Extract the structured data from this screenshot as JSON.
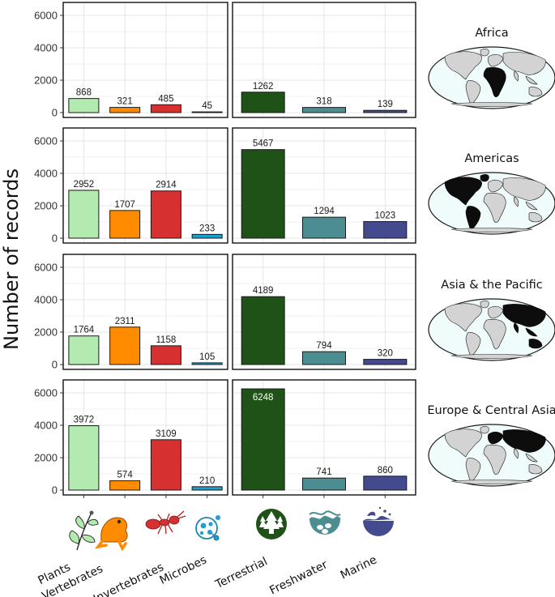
{
  "chart_data": {
    "type": "bar",
    "ylabel": "Number of records",
    "ylim": [
      0,
      6500
    ],
    "yticks": [
      0,
      2000,
      4000,
      6000
    ],
    "grid": true,
    "group_left": {
      "categories": [
        "Plants",
        "Vertebrates",
        "Invertebrates",
        "Microbes"
      ],
      "colors": [
        "#b2eab0",
        "#ff8c00",
        "#d63031",
        "#1f9fcf"
      ]
    },
    "group_right": {
      "categories": [
        "Terrestrial",
        "Freshwater",
        "Marine"
      ],
      "colors": [
        "#1e5216",
        "#4b8d90",
        "#434a8e"
      ]
    },
    "regions": [
      {
        "name": "Africa",
        "left": [
          868,
          321,
          485,
          45
        ],
        "right": [
          1262,
          318,
          139
        ]
      },
      {
        "name": "Americas",
        "left": [
          2952,
          1707,
          2914,
          233
        ],
        "right": [
          5467,
          1294,
          1023
        ]
      },
      {
        "name": "Asia & the Pacific",
        "left": [
          1764,
          2311,
          1158,
          105
        ],
        "right": [
          4189,
          794,
          320
        ]
      },
      {
        "name": "Europe & Central Asia",
        "left": [
          3972,
          574,
          3109,
          210
        ],
        "right": [
          6248,
          741,
          860
        ]
      }
    ]
  },
  "icons": [
    "plant-icon",
    "frog-icon",
    "ant-icon",
    "microbe-icon",
    "forest-icon",
    "freshwater-icon",
    "marine-icon"
  ],
  "map_style": {
    "ocean": "#f0fbfb",
    "land": "#d3d3d3",
    "highlight": "#0d0d0d"
  }
}
